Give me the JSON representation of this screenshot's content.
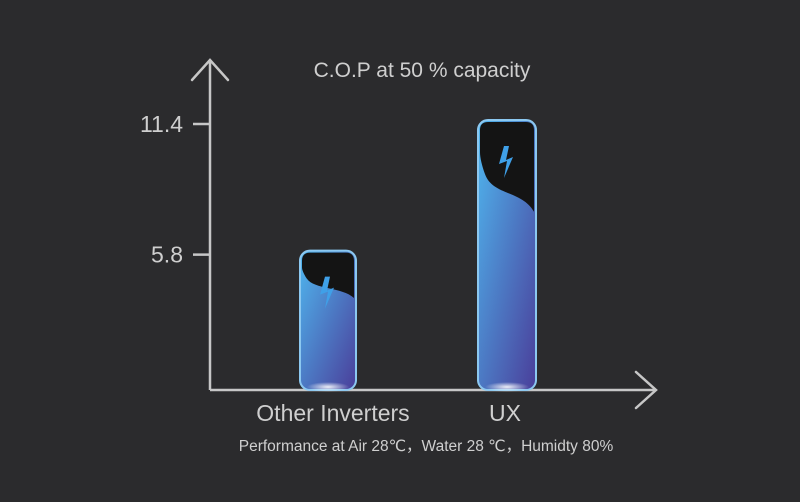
{
  "chart_data": {
    "type": "bar",
    "title": "C.O.P at 50 % capacity",
    "subtitle": "Performance at Air 28℃，Water 28 ℃，Humidty 80%",
    "categories": [
      "Other Inverters",
      "UX"
    ],
    "values": [
      5.8,
      11.4
    ],
    "yticks": [
      5.8,
      11.4
    ],
    "ytick_labels": [
      "5.8",
      "11.4"
    ],
    "ylim": [
      0,
      13
    ],
    "xlabel": "",
    "ylabel": "",
    "grid": false,
    "legend": "none",
    "icon": "lightning-bolt-icon",
    "colors": {
      "background": "#2b2b2d",
      "axis": "#c7c7c7",
      "text": "#cfcfcf",
      "bar_top": "#4fb7ef",
      "bar_bottom": "#4a3e9a",
      "bar_cap": "#141414",
      "bar_outline": "#8cc8f0",
      "bolt": "#3fa0e8"
    }
  }
}
